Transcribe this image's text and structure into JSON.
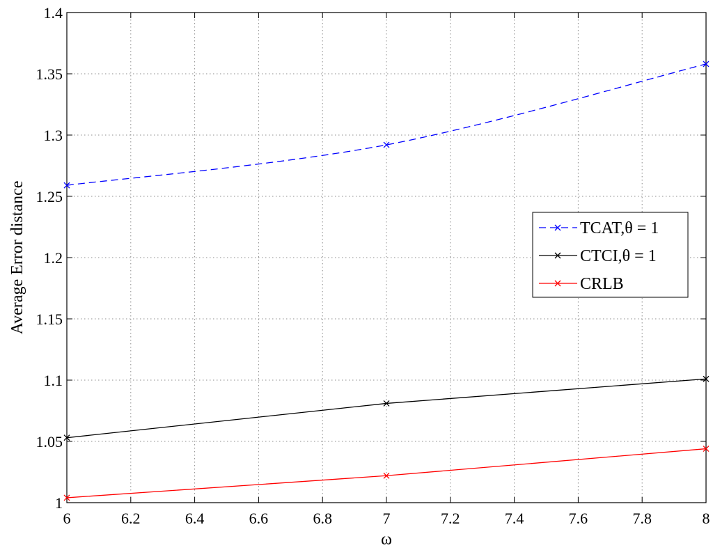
{
  "chart_data": {
    "type": "line",
    "title": "",
    "xlabel": "ω",
    "ylabel": "Average Error distance",
    "xlim": [
      6,
      8
    ],
    "ylim": [
      1,
      1.4
    ],
    "x_ticks": [
      6,
      6.2,
      6.4,
      6.6,
      6.8,
      7,
      7.2,
      7.4,
      7.6,
      7.8,
      8
    ],
    "x_tick_labels": [
      "6",
      "6.2",
      "6.4",
      "6.6",
      "6.8",
      "7",
      "7.2",
      "7.4",
      "7.6",
      "7.8",
      "8"
    ],
    "y_ticks": [
      1,
      1.05,
      1.1,
      1.15,
      1.2,
      1.25,
      1.3,
      1.35,
      1.4
    ],
    "y_tick_labels": [
      "1",
      "1.05",
      "1.1",
      "1.15",
      "1.2",
      "1.25",
      "1.3",
      "1.35",
      "1.4"
    ],
    "grid": true,
    "legend_position": "right",
    "series": [
      {
        "name": "TCAT,θ = 1",
        "x": [
          6,
          7,
          8
        ],
        "values": [
          1.259,
          1.292,
          1.358
        ],
        "color": "#0000ff",
        "line_style": "dashed",
        "marker": "x",
        "smooth": true
      },
      {
        "name": "CTCI,θ = 1",
        "x": [
          6,
          7,
          8
        ],
        "values": [
          1.053,
          1.081,
          1.101
        ],
        "color": "#000000",
        "line_style": "solid",
        "marker": "x",
        "smooth": false
      },
      {
        "name": "CRLB",
        "x": [
          6,
          7,
          8
        ],
        "values": [
          1.004,
          1.022,
          1.044
        ],
        "color": "#ff0000",
        "line_style": "solid",
        "marker": "x",
        "smooth": false
      }
    ]
  }
}
